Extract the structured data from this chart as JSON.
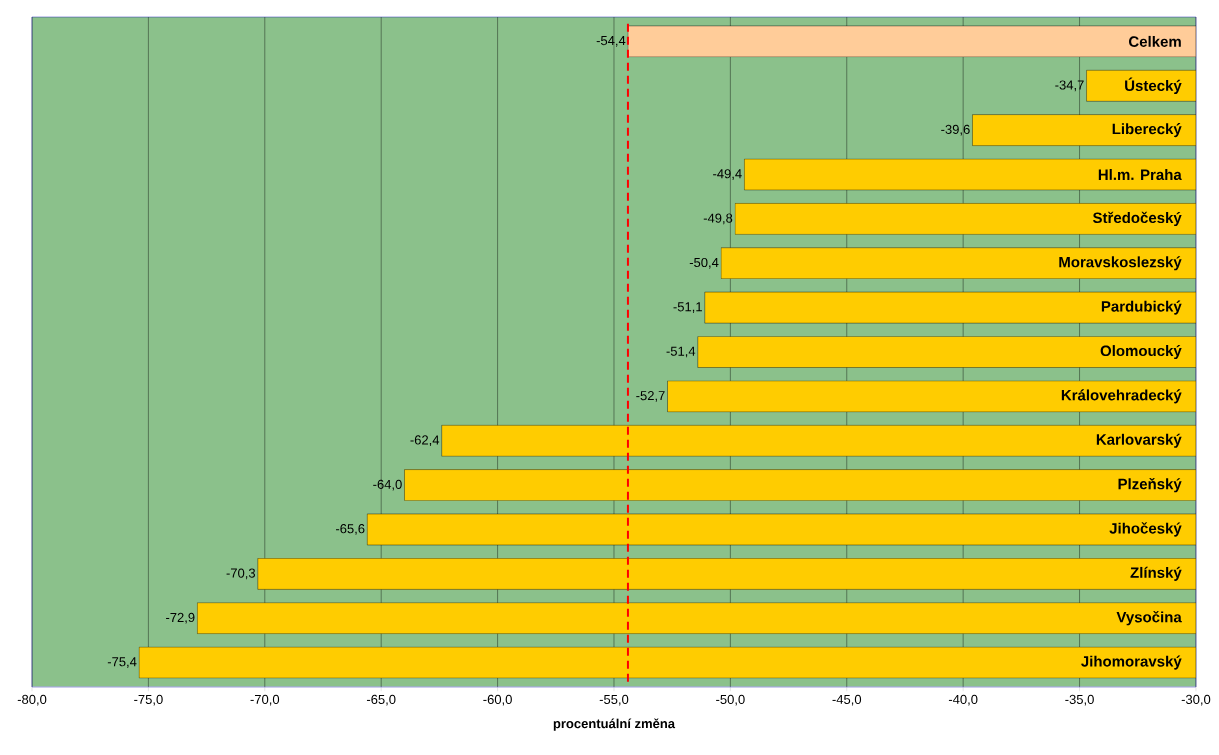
{
  "chart_data": {
    "type": "bar",
    "orientation": "horizontal",
    "xlabel": "procentuální změna",
    "categories": [
      "Celkem",
      "Ústecký",
      "Liberecký",
      "Hl.m. Praha",
      "Středočeský",
      "Moravskoslezský",
      "Pardubický",
      "Olomoucký",
      "Královehradecký",
      "Karlovarský",
      "Plzeňský",
      "Jihočeský",
      "Zlínský",
      "Vysočina",
      "Jihomoravský"
    ],
    "values": [
      -54.4,
      -34.7,
      -39.6,
      -49.4,
      -49.8,
      -50.4,
      -51.1,
      -51.4,
      -52.7,
      -62.4,
      -64.0,
      -65.6,
      -70.3,
      -72.9,
      -75.4
    ],
    "value_labels": [
      "-54,4",
      "-34,7",
      "-39,6",
      "-49,4",
      "-49,8",
      "-50,4",
      "-51,1",
      "-51,4",
      "-52,7",
      "-62,4",
      "-64,0",
      "-65,6",
      "-70,3",
      "-72,9",
      "-75,4"
    ],
    "colors": [
      "#ffcc99",
      "#ffcc00",
      "#ffcc00",
      "#ffcc00",
      "#ffcc00",
      "#ffcc00",
      "#ffcc00",
      "#ffcc00",
      "#ffcc00",
      "#ffcc00",
      "#ffcc00",
      "#ffcc00",
      "#ffcc00",
      "#ffcc00",
      "#ffcc00"
    ],
    "xlim": [
      -80,
      -30
    ],
    "xticks": [
      {
        "value": -80,
        "label": "-80,0"
      },
      {
        "value": -75,
        "label": "-75,0"
      },
      {
        "value": -70,
        "label": "-70,0"
      },
      {
        "value": -65,
        "label": "-65,0"
      },
      {
        "value": -60,
        "label": "-60,0"
      },
      {
        "value": -55,
        "label": "-55,0"
      },
      {
        "value": -50,
        "label": "-50,0"
      },
      {
        "value": -45,
        "label": "-45,0"
      },
      {
        "value": -40,
        "label": "-40,0"
      },
      {
        "value": -35,
        "label": "-35,0"
      },
      {
        "value": -30,
        "label": "-30,0"
      }
    ],
    "ref_lines": [
      {
        "axis": "x",
        "value": -54.4,
        "color": "#ff0000",
        "line_style": "dashed"
      }
    ],
    "grid": "x",
    "tick_labels": "x"
  }
}
